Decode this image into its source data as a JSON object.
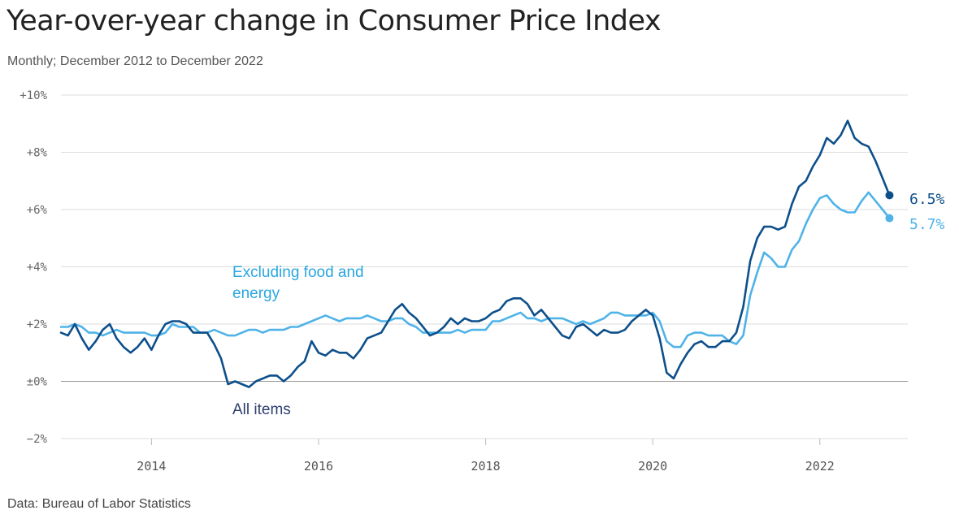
{
  "title": "Year-over-year change in Consumer Price Index",
  "subtitle": "Monthly; December 2012 to December 2022",
  "source": "Data: Bureau of Labor Statistics",
  "chart_data": {
    "type": "line",
    "x_start": "2012-12",
    "x_end": "2022-12",
    "ylim": [
      -2,
      10
    ],
    "y_ticks": [
      {
        "value": 10,
        "label": "+10%"
      },
      {
        "value": 8,
        "label": "+8%"
      },
      {
        "value": 6,
        "label": "+6%"
      },
      {
        "value": 4,
        "label": "+4%"
      },
      {
        "value": 2,
        "label": "+2%"
      },
      {
        "value": 0,
        "label": "±0%"
      },
      {
        "value": -2,
        "label": "−2%"
      }
    ],
    "x_ticks": [
      {
        "value": "2014-01",
        "label": "2014"
      },
      {
        "value": "2016-01",
        "label": "2016"
      },
      {
        "value": "2018-01",
        "label": "2018"
      },
      {
        "value": "2020-01",
        "label": "2020"
      },
      {
        "value": "2022-01",
        "label": "2022"
      }
    ],
    "grid": true,
    "series": [
      {
        "name": "All items",
        "color": "#0d4f8b",
        "end_label": "6.5%",
        "values": [
          1.7,
          1.6,
          2.0,
          1.5,
          1.1,
          1.4,
          1.8,
          2.0,
          1.5,
          1.2,
          1.0,
          1.2,
          1.5,
          1.1,
          1.6,
          2.0,
          2.1,
          2.1,
          2.0,
          1.7,
          1.7,
          1.7,
          1.3,
          0.8,
          -0.1,
          0.0,
          -0.1,
          -0.2,
          0.0,
          0.1,
          0.2,
          0.2,
          0.0,
          0.2,
          0.5,
          0.7,
          1.4,
          1.0,
          0.9,
          1.1,
          1.0,
          1.0,
          0.8,
          1.1,
          1.5,
          1.6,
          1.7,
          2.1,
          2.5,
          2.7,
          2.4,
          2.2,
          1.9,
          1.6,
          1.7,
          1.9,
          2.2,
          2.0,
          2.2,
          2.1,
          2.1,
          2.2,
          2.4,
          2.5,
          2.8,
          2.9,
          2.9,
          2.7,
          2.3,
          2.5,
          2.2,
          1.9,
          1.6,
          1.5,
          1.9,
          2.0,
          1.8,
          1.6,
          1.8,
          1.7,
          1.7,
          1.8,
          2.1,
          2.3,
          2.5,
          2.3,
          1.5,
          0.3,
          0.1,
          0.6,
          1.0,
          1.3,
          1.4,
          1.2,
          1.2,
          1.4,
          1.4,
          1.7,
          2.6,
          4.2,
          5.0,
          5.4,
          5.4,
          5.3,
          5.4,
          6.2,
          6.8,
          7.0,
          7.5,
          7.9,
          8.5,
          8.3,
          8.6,
          9.1,
          8.5,
          8.3,
          8.2,
          7.7,
          7.1,
          6.5
        ]
      },
      {
        "name": "Excluding food and energy",
        "color": "#4fb3e8",
        "end_label": "5.7%",
        "values": [
          1.9,
          1.9,
          2.0,
          1.9,
          1.7,
          1.7,
          1.6,
          1.7,
          1.8,
          1.7,
          1.7,
          1.7,
          1.7,
          1.6,
          1.6,
          1.7,
          2.0,
          1.9,
          1.9,
          1.9,
          1.7,
          1.7,
          1.8,
          1.7,
          1.6,
          1.6,
          1.7,
          1.8,
          1.8,
          1.7,
          1.8,
          1.8,
          1.8,
          1.9,
          1.9,
          2.0,
          2.1,
          2.2,
          2.3,
          2.2,
          2.1,
          2.2,
          2.2,
          2.2,
          2.3,
          2.2,
          2.1,
          2.1,
          2.2,
          2.2,
          2.0,
          1.9,
          1.7,
          1.7,
          1.7,
          1.7,
          1.7,
          1.8,
          1.7,
          1.8,
          1.8,
          1.8,
          2.1,
          2.1,
          2.2,
          2.3,
          2.4,
          2.2,
          2.2,
          2.1,
          2.2,
          2.2,
          2.2,
          2.1,
          2.0,
          2.1,
          2.0,
          2.1,
          2.2,
          2.4,
          2.4,
          2.3,
          2.3,
          2.3,
          2.3,
          2.4,
          2.1,
          1.4,
          1.2,
          1.2,
          1.6,
          1.7,
          1.7,
          1.6,
          1.6,
          1.6,
          1.4,
          1.3,
          1.6,
          3.0,
          3.8,
          4.5,
          4.3,
          4.0,
          4.0,
          4.6,
          4.9,
          5.5,
          6.0,
          6.4,
          6.5,
          6.2,
          6.0,
          5.9,
          5.9,
          6.3,
          6.6,
          6.3,
          6.0,
          5.7
        ]
      }
    ]
  },
  "annotations": {
    "excluding_label_line1": "Excluding food and",
    "excluding_label_line2": "energy",
    "all_items_label": "All items"
  }
}
